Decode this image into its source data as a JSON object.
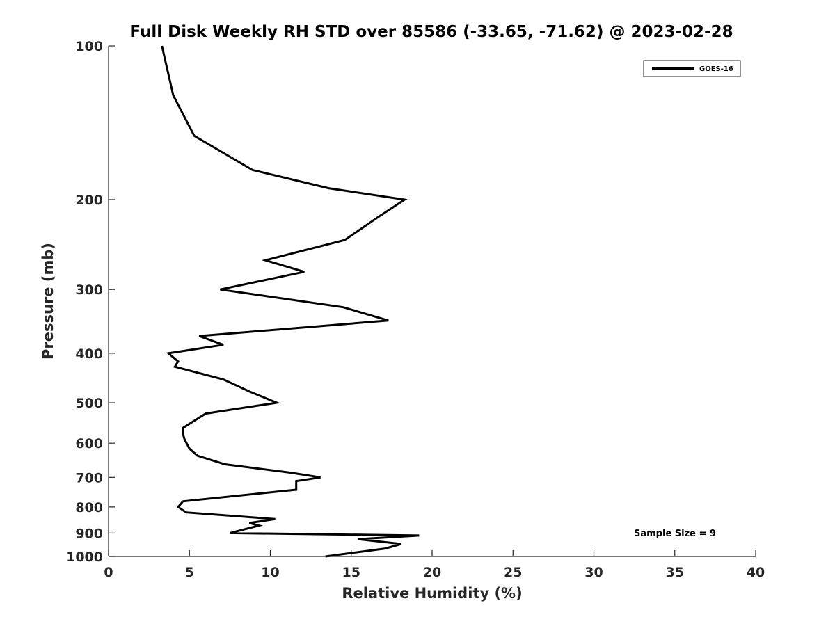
{
  "chart_data": {
    "type": "line",
    "title": "Full Disk Weekly RH STD over 85586 (-33.65, -71.62) @ 2023-02-28",
    "xlabel": "Relative Humidity (%)",
    "ylabel": "Pressure (mb)",
    "xlim": [
      0,
      40
    ],
    "ylim": [
      100,
      1000
    ],
    "y_scale": "log",
    "y_reversed": true,
    "xticks": [
      0,
      5,
      10,
      15,
      20,
      25,
      30,
      35,
      40
    ],
    "yticks": [
      100,
      200,
      300,
      400,
      500,
      600,
      700,
      800,
      900,
      1000
    ],
    "grid": false,
    "legend_position": "top-right",
    "series": [
      {
        "name": "GOES-16",
        "color": "#000000",
        "points": [
          [
            3.3,
            100
          ],
          [
            4.0,
            125
          ],
          [
            5.3,
            150
          ],
          [
            8.9,
            175
          ],
          [
            13.6,
            190
          ],
          [
            18.3,
            200
          ],
          [
            16.8,
            215
          ],
          [
            14.6,
            240
          ],
          [
            9.7,
            263
          ],
          [
            12.1,
            277
          ],
          [
            6.9,
            300
          ],
          [
            14.5,
            325
          ],
          [
            17.3,
            345
          ],
          [
            5.6,
            370
          ],
          [
            7.1,
            385
          ],
          [
            3.7,
            400
          ],
          [
            4.3,
            415
          ],
          [
            4.1,
            425
          ],
          [
            7.1,
            450
          ],
          [
            8.7,
            475
          ],
          [
            10.4,
            500
          ],
          [
            6.0,
            525
          ],
          [
            4.6,
            560
          ],
          [
            4.6,
            575
          ],
          [
            4.7,
            590
          ],
          [
            5.0,
            615
          ],
          [
            5.5,
            635
          ],
          [
            7.2,
            660
          ],
          [
            11.2,
            685
          ],
          [
            13.1,
            700
          ],
          [
            11.6,
            712
          ],
          [
            11.6,
            740
          ],
          [
            4.6,
            780
          ],
          [
            4.3,
            800
          ],
          [
            4.8,
            820
          ],
          [
            10.3,
            845
          ],
          [
            8.7,
            860
          ],
          [
            9.3,
            870
          ],
          [
            7.5,
            900
          ],
          [
            19.2,
            910
          ],
          [
            15.4,
            925
          ],
          [
            18.1,
            945
          ],
          [
            17.1,
            965
          ],
          [
            13.4,
            1000
          ]
        ]
      }
    ],
    "annotation": "Sample Size = 9"
  }
}
